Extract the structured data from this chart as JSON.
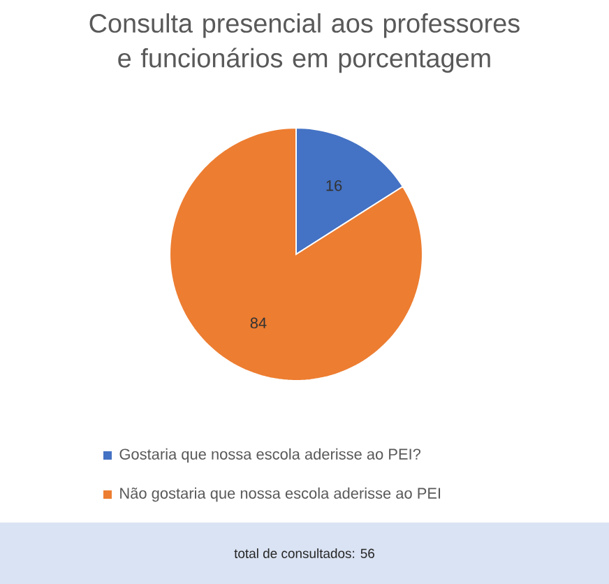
{
  "chart_data": {
    "type": "pie",
    "title": "Consulta presencial aos professores e funcionários em porcentagem",
    "categories": [
      "Gostaria que nossa escola aderisse ao PEI?",
      "Não gostaria que nossa escola aderisse ao PEI"
    ],
    "values": [
      16,
      84
    ],
    "colors": [
      "#4472c4",
      "#ed7d31"
    ],
    "data_labels": true,
    "legend": "bottom",
    "annotations": [
      "total de consultados: 56"
    ]
  }
}
